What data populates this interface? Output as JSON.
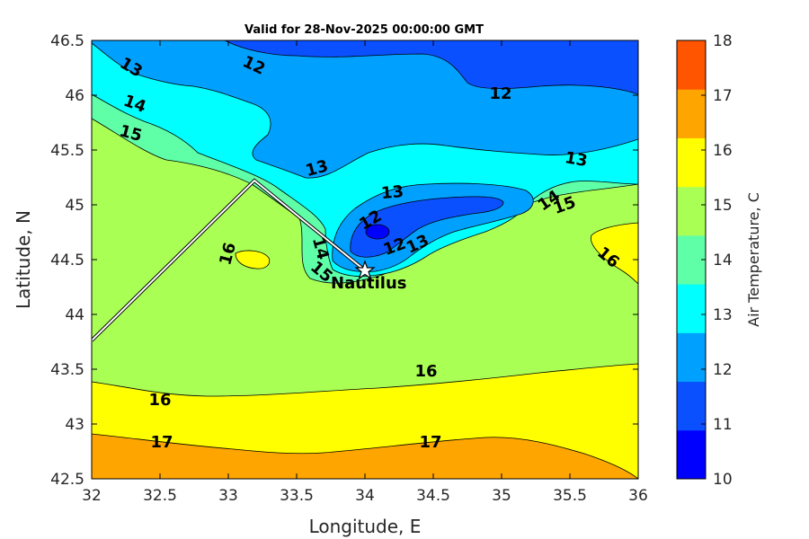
{
  "title": "Valid for 28-Nov-2025 00:00:00 GMT",
  "map": {
    "xlabel": "Longitude, E",
    "ylabel": "Latitude, N",
    "xlim": [
      32,
      36
    ],
    "ylim": [
      42.5,
      46.5
    ],
    "x_ticks": [
      "32",
      "32.5",
      "33",
      "33.5",
      "34",
      "34.5",
      "35",
      "35.5",
      "36"
    ],
    "y_ticks": [
      "42.5",
      "43",
      "43.5",
      "44",
      "44.5",
      "45",
      "45.5",
      "46",
      "46.5"
    ]
  },
  "colorbar": {
    "label": "Air Temperature, C",
    "ticks": [
      "10",
      "11",
      "12",
      "13",
      "14",
      "15",
      "16",
      "17",
      "18"
    ],
    "colors": [
      "#0000ff",
      "#0a50ff",
      "#00a0ff",
      "#00ffff",
      "#5fffa8",
      "#aaff55",
      "#ffff00",
      "#ffa500",
      "#ff5500"
    ]
  },
  "station": {
    "name": "Nautilus",
    "lon": 34.0,
    "lat": 44.4,
    "icon": "star-icon"
  },
  "track": [
    [
      32.0,
      43.77
    ],
    [
      33.2,
      45.22
    ],
    [
      34.0,
      44.4
    ]
  ],
  "contour_labels": [
    "13",
    "12",
    "12",
    "14",
    "15",
    "13",
    "13",
    "13",
    "12",
    "14",
    "15",
    "16",
    "14",
    "15",
    "12",
    "13",
    "16",
    "16",
    "16",
    "17",
    "17"
  ]
}
